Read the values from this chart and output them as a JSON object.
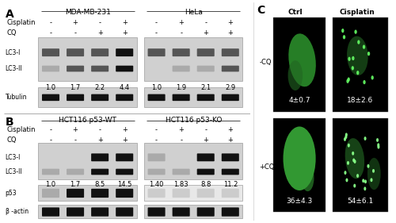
{
  "fig_width": 5.0,
  "fig_height": 2.81,
  "dpi": 100,
  "panel_A": {
    "label": "A",
    "cell_lines": [
      "MDA-MB-231",
      "HeLa"
    ],
    "LC3II_values_mda": [
      "1.0",
      "1.7",
      "2.2",
      "4.4"
    ],
    "LC3II_values_hela": [
      "1.0",
      "1.9",
      "2.1",
      "2.9"
    ]
  },
  "panel_B": {
    "label": "B",
    "cell_lines": [
      "HCT116 p53-WT",
      "HCT116 p53-KO"
    ],
    "LC3II_values_wt": [
      "1.0",
      "1.7",
      "8.5",
      "14.5"
    ],
    "LC3II_values_ko": [
      "1.40",
      "1.83",
      "8.8",
      "11.2"
    ]
  },
  "panel_C": {
    "label": "C",
    "col_labels": [
      "Ctrl",
      "Cisplatin"
    ],
    "row_labels": [
      "-CQ",
      "+CQ"
    ],
    "values": [
      "4±0.7",
      "18±2.6",
      "36±4.3",
      "54±6.1"
    ]
  },
  "cis_signs": [
    "-",
    "+",
    "-",
    "+"
  ],
  "cq_signs": [
    "-",
    "-",
    "+",
    "+"
  ],
  "background_color": "#ffffff",
  "text_color": "#000000",
  "font_size_label": 9,
  "font_size_small": 6.5,
  "font_size_values": 6,
  "font_size_panel": 10
}
